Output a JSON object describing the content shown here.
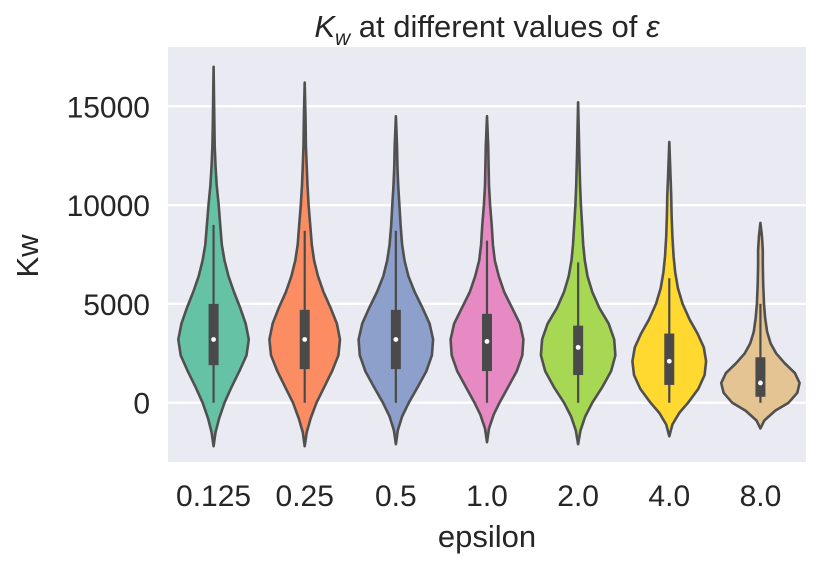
{
  "chart_data": {
    "type": "violin",
    "title": {
      "prefix": "K",
      "subscript": "w",
      "middle": " at different values of ",
      "symbol": "ε"
    },
    "xlabel": "epsilon",
    "ylabel": "Kw",
    "ylim": [
      -3000,
      18000
    ],
    "yticks": [
      0,
      5000,
      10000,
      15000
    ],
    "ytick_labels": [
      "0",
      "5000",
      "10000",
      "15000"
    ],
    "grid": true,
    "categories": [
      "0.125",
      "0.25",
      "0.5",
      "1.0",
      "2.0",
      "4.0",
      "8.0"
    ],
    "colors": [
      "#66c2a5",
      "#fc8d62",
      "#8da0cb",
      "#e78ac3",
      "#a6d854",
      "#ffd92f",
      "#e5c494"
    ],
    "series": [
      {
        "name": "0.125",
        "min": -2200,
        "max": 17000,
        "q1": 1900,
        "median": 3200,
        "q3": 5000,
        "whisker_low": 0,
        "whisker_high": 9000,
        "density": [
          [
            -2200,
            0
          ],
          [
            -1500,
            0.05
          ],
          [
            -800,
            0.14
          ],
          [
            0,
            0.28
          ],
          [
            800,
            0.46
          ],
          [
            1600,
            0.66
          ],
          [
            2400,
            0.84
          ],
          [
            3200,
            0.9
          ],
          [
            4000,
            0.82
          ],
          [
            4800,
            0.68
          ],
          [
            5600,
            0.52
          ],
          [
            6400,
            0.38
          ],
          [
            7200,
            0.28
          ],
          [
            8000,
            0.21
          ],
          [
            9000,
            0.17
          ],
          [
            10000,
            0.13
          ],
          [
            11000,
            0.08
          ],
          [
            12000,
            0.05
          ],
          [
            13000,
            0.03
          ],
          [
            14000,
            0.02
          ],
          [
            15500,
            0.01
          ],
          [
            17000,
            0
          ]
        ]
      },
      {
        "name": "0.25",
        "min": -2200,
        "max": 16200,
        "q1": 1700,
        "median": 3200,
        "q3": 4700,
        "whisker_low": 0,
        "whisker_high": 8700,
        "density": [
          [
            -2200,
            0
          ],
          [
            -1500,
            0.05
          ],
          [
            -800,
            0.15
          ],
          [
            0,
            0.3
          ],
          [
            800,
            0.5
          ],
          [
            1600,
            0.7
          ],
          [
            2400,
            0.86
          ],
          [
            3200,
            0.9
          ],
          [
            4000,
            0.82
          ],
          [
            4800,
            0.66
          ],
          [
            5600,
            0.48
          ],
          [
            6400,
            0.34
          ],
          [
            7200,
            0.24
          ],
          [
            8000,
            0.18
          ],
          [
            9000,
            0.14
          ],
          [
            10000,
            0.1
          ],
          [
            11000,
            0.07
          ],
          [
            12000,
            0.05
          ],
          [
            13000,
            0.03
          ],
          [
            14500,
            0.02
          ],
          [
            16200,
            0
          ]
        ]
      },
      {
        "name": "0.5",
        "min": -2100,
        "max": 14500,
        "q1": 1700,
        "median": 3200,
        "q3": 4700,
        "whisker_low": 0,
        "whisker_high": 8700,
        "density": [
          [
            -2100,
            0
          ],
          [
            -1400,
            0.05
          ],
          [
            -700,
            0.16
          ],
          [
            0,
            0.33
          ],
          [
            800,
            0.56
          ],
          [
            1600,
            0.78
          ],
          [
            2400,
            0.92
          ],
          [
            3200,
            0.95
          ],
          [
            4000,
            0.86
          ],
          [
            4800,
            0.68
          ],
          [
            5600,
            0.48
          ],
          [
            6400,
            0.32
          ],
          [
            7200,
            0.22
          ],
          [
            8000,
            0.16
          ],
          [
            9000,
            0.12
          ],
          [
            10000,
            0.09
          ],
          [
            11000,
            0.06
          ],
          [
            12000,
            0.04
          ],
          [
            13000,
            0.03
          ],
          [
            14500,
            0
          ]
        ]
      },
      {
        "name": "1.0",
        "min": -2000,
        "max": 14500,
        "q1": 1600,
        "median": 3100,
        "q3": 4500,
        "whisker_low": 0,
        "whisker_high": 8200,
        "density": [
          [
            -2000,
            0
          ],
          [
            -1300,
            0.05
          ],
          [
            -600,
            0.17
          ],
          [
            0,
            0.32
          ],
          [
            800,
            0.54
          ],
          [
            1600,
            0.76
          ],
          [
            2400,
            0.9
          ],
          [
            3200,
            0.93
          ],
          [
            4000,
            0.84
          ],
          [
            4800,
            0.64
          ],
          [
            5600,
            0.44
          ],
          [
            6400,
            0.3
          ],
          [
            7200,
            0.2
          ],
          [
            8000,
            0.15
          ],
          [
            9000,
            0.12
          ],
          [
            10000,
            0.08
          ],
          [
            11000,
            0.05
          ],
          [
            12000,
            0.04
          ],
          [
            13000,
            0.03
          ],
          [
            14500,
            0
          ]
        ]
      },
      {
        "name": "2.0",
        "min": -2100,
        "max": 15200,
        "q1": 1400,
        "median": 2800,
        "q3": 3900,
        "whisker_low": 0,
        "whisker_high": 7100,
        "density": [
          [
            -2100,
            0
          ],
          [
            -1400,
            0.06
          ],
          [
            -700,
            0.18
          ],
          [
            0,
            0.36
          ],
          [
            800,
            0.62
          ],
          [
            1600,
            0.84
          ],
          [
            2400,
            0.95
          ],
          [
            3200,
            0.92
          ],
          [
            4000,
            0.78
          ],
          [
            4800,
            0.54
          ],
          [
            5600,
            0.36
          ],
          [
            6400,
            0.24
          ],
          [
            7200,
            0.17
          ],
          [
            8000,
            0.13
          ],
          [
            9000,
            0.1
          ],
          [
            10000,
            0.07
          ],
          [
            11000,
            0.05
          ],
          [
            12500,
            0.03
          ],
          [
            13500,
            0.02
          ],
          [
            15200,
            0
          ]
        ]
      },
      {
        "name": "4.0",
        "min": -1700,
        "max": 13200,
        "q1": 900,
        "median": 2100,
        "q3": 3500,
        "whisker_low": 0,
        "whisker_high": 6300,
        "density": [
          [
            -1700,
            0
          ],
          [
            -1100,
            0.08
          ],
          [
            -500,
            0.26
          ],
          [
            0,
            0.48
          ],
          [
            700,
            0.74
          ],
          [
            1400,
            0.9
          ],
          [
            2100,
            0.94
          ],
          [
            2800,
            0.88
          ],
          [
            3500,
            0.72
          ],
          [
            4200,
            0.52
          ],
          [
            5000,
            0.34
          ],
          [
            5800,
            0.22
          ],
          [
            6600,
            0.15
          ],
          [
            7400,
            0.11
          ],
          [
            8400,
            0.08
          ],
          [
            9500,
            0.06
          ],
          [
            10500,
            0.05
          ],
          [
            11500,
            0.03
          ],
          [
            13200,
            0
          ]
        ]
      },
      {
        "name": "8.0",
        "min": -1300,
        "max": 9100,
        "q1": 300,
        "median": 1000,
        "q3": 2300,
        "whisker_low": 0,
        "whisker_high": 5000,
        "density": [
          [
            -1300,
            0
          ],
          [
            -900,
            0.1
          ],
          [
            -400,
            0.38
          ],
          [
            0,
            0.72
          ],
          [
            500,
            0.94
          ],
          [
            1000,
            1.0
          ],
          [
            1500,
            0.88
          ],
          [
            2000,
            0.62
          ],
          [
            2500,
            0.4
          ],
          [
            3000,
            0.26
          ],
          [
            3600,
            0.17
          ],
          [
            4300,
            0.12
          ],
          [
            5000,
            0.09
          ],
          [
            6000,
            0.07
          ],
          [
            7000,
            0.06
          ],
          [
            7700,
            0.06
          ],
          [
            8400,
            0.04
          ],
          [
            9100,
            0
          ]
        ]
      }
    ]
  }
}
